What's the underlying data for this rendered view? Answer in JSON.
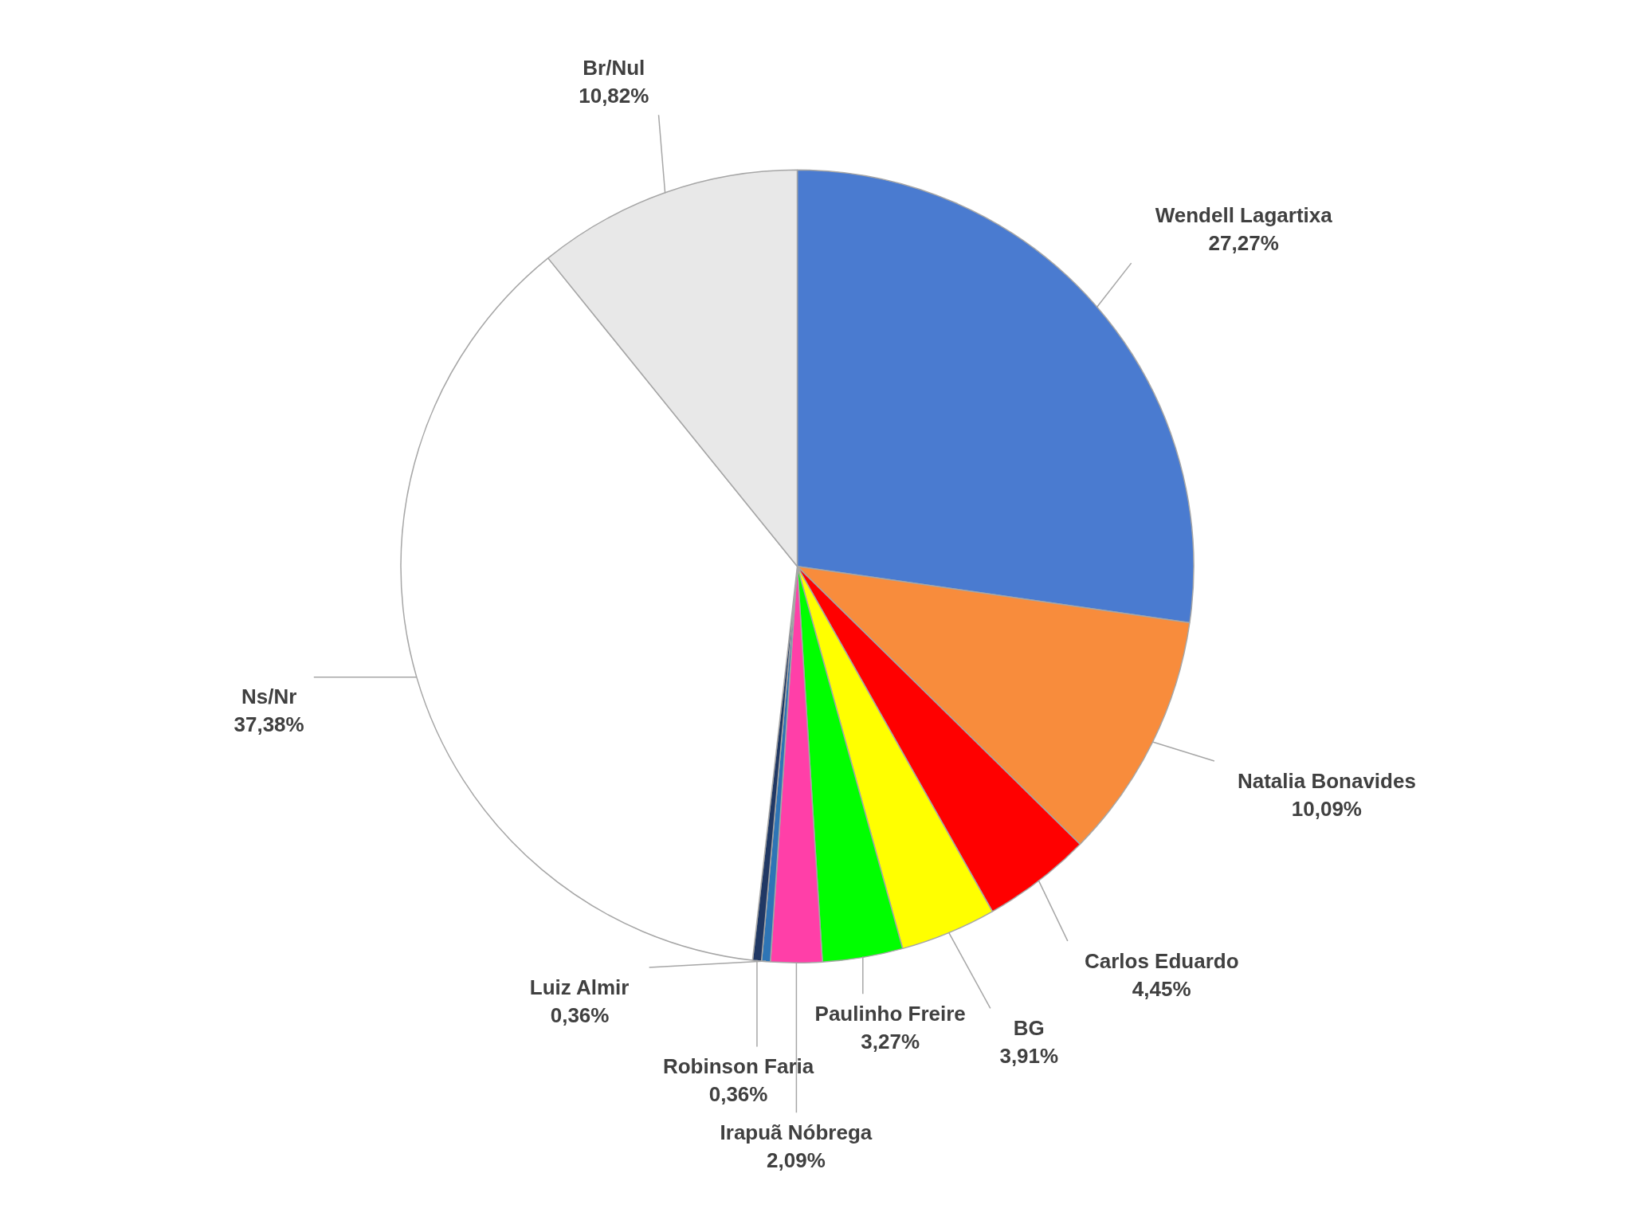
{
  "chart_data": {
    "type": "pie",
    "categories": [
      "Wendell Lagartixa",
      "Natalia Bonavides",
      "Carlos Eduardo",
      "BG",
      "Paulinho Freire",
      "Irapuã Nóbrega",
      "Luiz Almir",
      "Robinson Faria",
      "Ns/Nr",
      "Br/Nul"
    ],
    "values": [
      27.27,
      10.09,
      4.45,
      3.91,
      3.27,
      2.09,
      0.36,
      0.36,
      37.38,
      10.82
    ],
    "value_labels": [
      "27,27%",
      "10,09%",
      "4,45%",
      "3,91%",
      "3,27%",
      "2,09%",
      "0,36%",
      "0,36%",
      "37,38%",
      "10,82%"
    ],
    "colors": [
      "#4a7bd0",
      "#f88c3c",
      "#ff0000",
      "#ffff00",
      "#00ff00",
      "#ff3fa8",
      "#2e75b6",
      "#203864",
      "#ffffff",
      "#e8e8e8"
    ]
  }
}
